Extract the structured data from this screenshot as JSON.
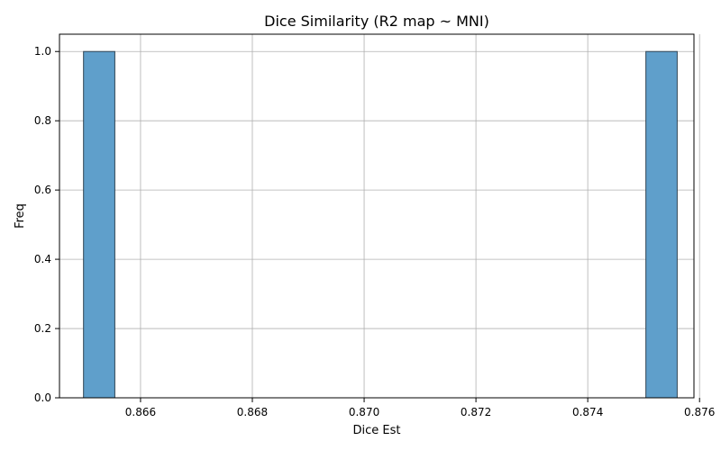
{
  "chart_data": {
    "type": "bar",
    "title": "Dice Similarity (R2 map ~ MNI)",
    "xlabel": "Dice Est",
    "ylabel": "Freq",
    "xlim": [
      0.86455,
      0.8759
    ],
    "ylim": [
      0,
      1.05
    ],
    "xticks": [
      0.866,
      0.868,
      0.87,
      0.872,
      0.874,
      0.876
    ],
    "xtick_labels": [
      "0.866",
      "0.868",
      "0.870",
      "0.872",
      "0.874",
      "0.876"
    ],
    "yticks": [
      0.0,
      0.2,
      0.4,
      0.6,
      0.8,
      1.0
    ],
    "ytick_labels": [
      "0.0",
      "0.2",
      "0.4",
      "0.6",
      "0.8",
      "1.0"
    ],
    "grid": true,
    "bins": [
      {
        "x0": 0.86498,
        "x1": 0.86554,
        "count": 1
      },
      {
        "x0": 0.87504,
        "x1": 0.8756,
        "count": 1
      }
    ],
    "colors": {
      "bar_fill": "#5f9fcb",
      "bar_edge": "#2f4454",
      "grid": "#b0b0b0",
      "axis": "#000000"
    }
  }
}
